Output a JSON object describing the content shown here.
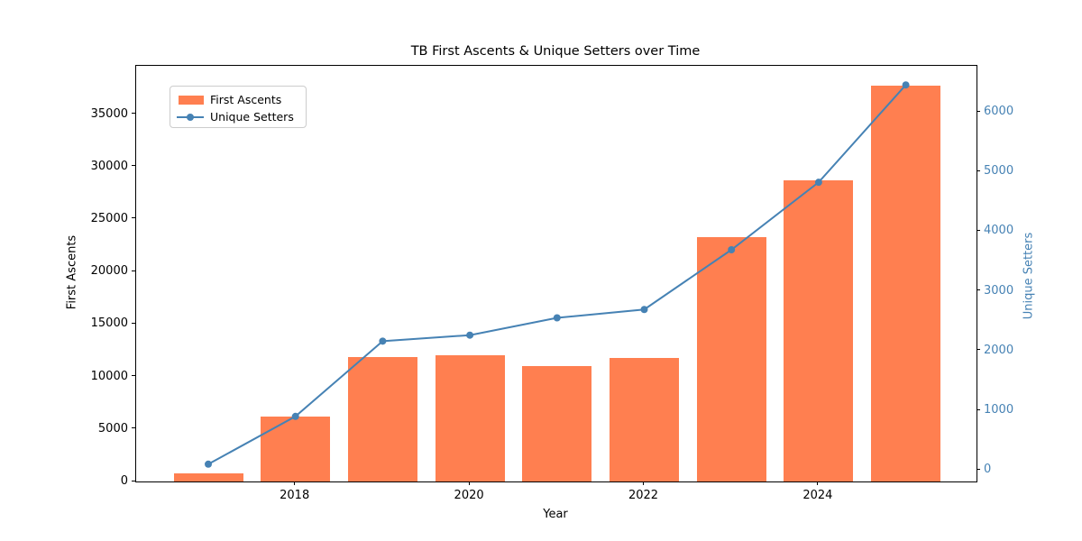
{
  "chart_data": {
    "type": "bar",
    "title": "TB First Ascents & Unique Setters over Time",
    "xlabel": "Year",
    "ylabel_left": "First Ascents",
    "ylabel_right": "Unique Setters",
    "categories": [
      2017,
      2018,
      2019,
      2020,
      2021,
      2022,
      2023,
      2024,
      2025
    ],
    "series": [
      {
        "name": "First Ascents",
        "type": "bar",
        "axis": "left",
        "color": "#FF7F50",
        "values": [
          800,
          6200,
          11850,
          12000,
          11000,
          11750,
          23250,
          28650,
          37700
        ]
      },
      {
        "name": "Unique Setters",
        "type": "line",
        "axis": "right",
        "color": "#4682B4",
        "values": [
          100,
          900,
          2160,
          2260,
          2550,
          2690,
          3690,
          4820,
          6450
        ]
      }
    ],
    "left_axis": {
      "ticks": [
        0,
        5000,
        10000,
        15000,
        20000,
        25000,
        30000,
        35000
      ],
      "range": [
        0,
        39600
      ],
      "color": "#000000"
    },
    "right_axis": {
      "ticks": [
        0,
        1000,
        2000,
        3000,
        4000,
        5000,
        6000
      ],
      "range": [
        -190,
        6770
      ],
      "color": "#4682B4"
    },
    "x_ticks": [
      2018,
      2020,
      2022,
      2024
    ],
    "legend": {
      "position": "upper-left",
      "items": [
        "First Ascents",
        "Unique Setters"
      ]
    },
    "grid": false,
    "background": "#ffffff"
  }
}
